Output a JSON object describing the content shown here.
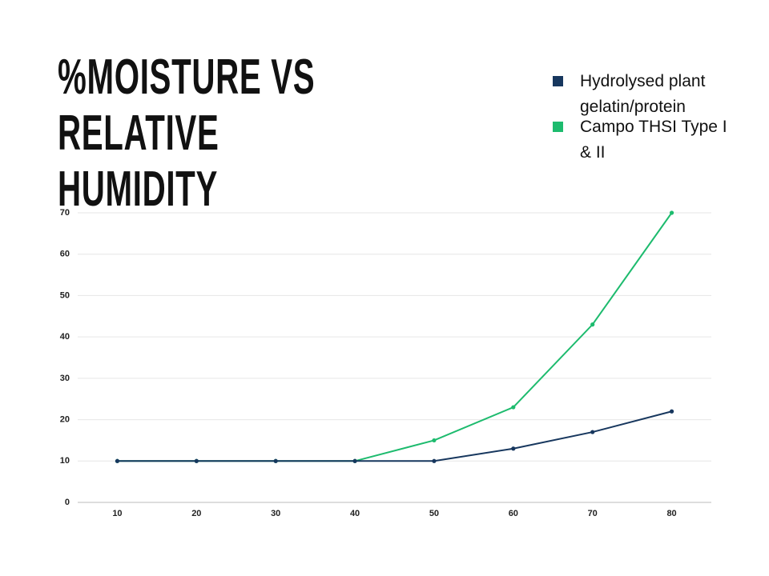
{
  "chart_data": {
    "type": "line",
    "title": "%MOISTURE VS RELATIVE HUMIDITY",
    "x": [
      10,
      20,
      30,
      40,
      50,
      60,
      70,
      80
    ],
    "series": [
      {
        "name": "Hydrolysed plant gelatin/protein",
        "color": "#17375e",
        "values": [
          10,
          10,
          10,
          10,
          10,
          13,
          17,
          22
        ]
      },
      {
        "name": "Campo THSI Type I & II",
        "color": "#1dbb6e",
        "values": [
          10,
          10,
          10,
          10,
          15,
          23,
          43,
          70
        ]
      }
    ],
    "xlim": [
      5,
      85
    ],
    "xticks": [
      10,
      20,
      30,
      40,
      50,
      60,
      70,
      80
    ],
    "ylim": [
      0,
      70
    ],
    "yticks": [
      0,
      10,
      20,
      30,
      40,
      50,
      60,
      70
    ],
    "grid": true,
    "legend": "top-right"
  }
}
